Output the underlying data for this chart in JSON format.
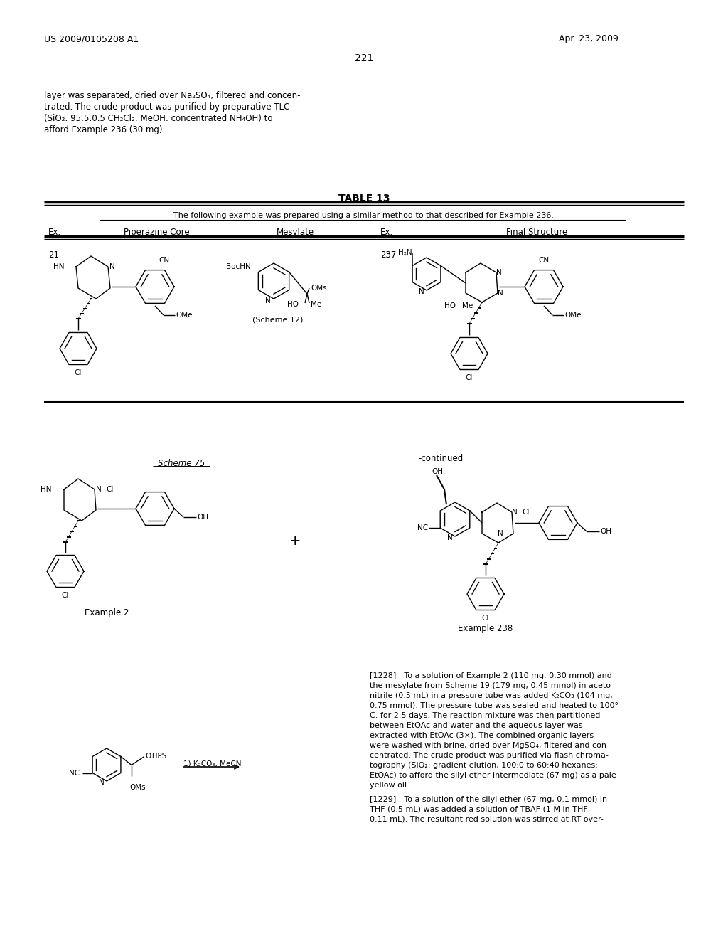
{
  "background_color": "#ffffff",
  "page_number": "221",
  "header_left": "US 2009/0105208 A1",
  "header_right": "Apr. 23, 2009",
  "intro_text_lines": [
    "layer was separated, dried over Na₂SO₄, filtered and concen-",
    "trated. The crude product was purified by preparative TLC",
    "(SiO₂: 95:5:0.5 CH₂Cl₂: MeOH: concentrated NH₄OH) to",
    "afford Example 236 (30 mg)."
  ],
  "table_title": "TABLE 13",
  "table_subtitle": "The following example was prepared using a similar method to that described for Example 236.",
  "col_ex1": "Ex.",
  "col_pip": "Piperazine Core",
  "col_mes": "Mesylate",
  "col_ex2": "Ex.",
  "col_fin": "Final Structure",
  "row_ex_left": "21",
  "row_ex_right": "237",
  "scheme_label": "Scheme 75",
  "scheme12_label": "(Scheme 12)",
  "example2_label": "Example 2",
  "example238_label": "Example 238",
  "continued_label": "-continued",
  "reaction_arrow_label": "1) K₂CO₃, MeCN",
  "plus_sign": "+",
  "para1228": "[1228] To a solution of Example 2 (110 mg, 0.30 mmol) and the mesylate from Scheme 19 (179 mg, 0.45 mmol) in acetonitrile (0.5 mL) in a pressure tube was added K₂CO₃ (104 mg, 0.75 mmol). The pressure tube was sealed and heated to 100° C. for 2.5 days. The reaction mixture was then partitioned between EtOAc and water and the aqueous layer was extracted with EtOAc (3×). The combined organic layers were washed with brine, dried over MgSO₄, filtered and concentrated. The crude product was purified via flash chromatography (SiO₂: gradient elution, 100:0 to 60:40 hexanes: EtOAc) to afford the silyl ether intermediate (67 mg) as a pale yellow oil.",
  "para1229": "[1229] To a solution of the silyl ether (67 mg, 0.1 mmol) in THF (0.5 mL) was added a solution of TBAF (1 M in THF, 0.11 mL). The resultant red solution was stirred at RT over-"
}
